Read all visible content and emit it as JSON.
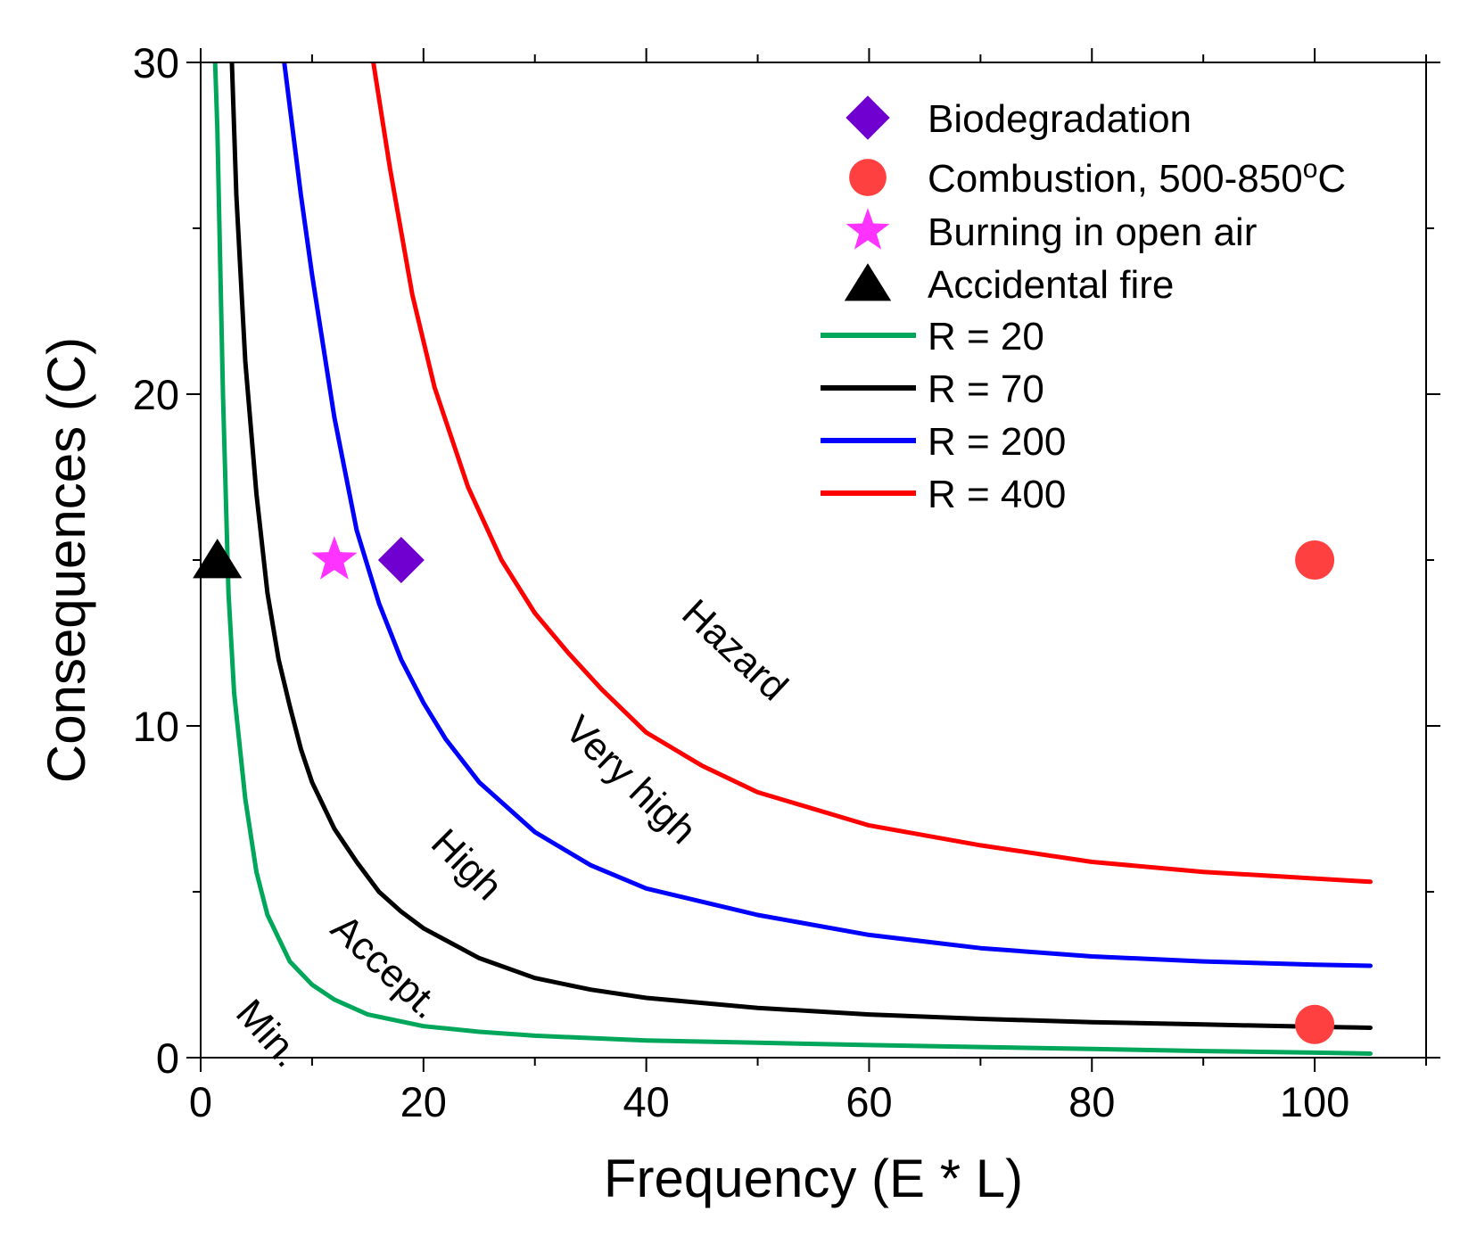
{
  "chart_data": {
    "type": "line",
    "xlabel": "Frequency (E * L)",
    "ylabel": "Consequences (C)",
    "xlim": [
      0,
      110
    ],
    "ylim": [
      0,
      30
    ],
    "x_ticks": [
      0,
      20,
      40,
      60,
      80,
      100
    ],
    "y_ticks": [
      0,
      10,
      20,
      30
    ],
    "x_minor_step": 10,
    "y_minor_step": 5,
    "series": [
      {
        "name": "R = 20",
        "color": "#00a65a",
        "values": [
          [
            1.3,
            30
          ],
          [
            1.5,
            28
          ],
          [
            2,
            20
          ],
          [
            2.5,
            14
          ],
          [
            3,
            11
          ],
          [
            4,
            7.8
          ],
          [
            5,
            5.6
          ],
          [
            6,
            4.3
          ],
          [
            8,
            2.9
          ],
          [
            10,
            2.2
          ],
          [
            12,
            1.75
          ],
          [
            15,
            1.3
          ],
          [
            20,
            0.95
          ],
          [
            25,
            0.78
          ],
          [
            30,
            0.66
          ],
          [
            40,
            0.52
          ],
          [
            50,
            0.45
          ],
          [
            60,
            0.38
          ],
          [
            70,
            0.32
          ],
          [
            80,
            0.26
          ],
          [
            90,
            0.2
          ],
          [
            100,
            0.15
          ],
          [
            105,
            0.12
          ]
        ]
      },
      {
        "name": "R = 70",
        "color": "#000000",
        "values": [
          [
            2.8,
            30
          ],
          [
            3.2,
            26
          ],
          [
            4,
            21
          ],
          [
            5,
            17
          ],
          [
            6,
            14
          ],
          [
            7,
            12
          ],
          [
            8,
            10.6
          ],
          [
            9,
            9.3
          ],
          [
            10,
            8.3
          ],
          [
            12,
            6.9
          ],
          [
            14,
            5.9
          ],
          [
            16,
            5.0
          ],
          [
            18,
            4.4
          ],
          [
            20,
            3.9
          ],
          [
            25,
            3.0
          ],
          [
            30,
            2.4
          ],
          [
            35,
            2.05
          ],
          [
            40,
            1.8
          ],
          [
            50,
            1.5
          ],
          [
            60,
            1.3
          ],
          [
            70,
            1.17
          ],
          [
            80,
            1.07
          ],
          [
            90,
            1.0
          ],
          [
            100,
            0.93
          ],
          [
            105,
            0.9
          ]
        ]
      },
      {
        "name": "R = 200",
        "color": "#0000ff",
        "values": [
          [
            7.5,
            30
          ],
          [
            9,
            26
          ],
          [
            10,
            23.6
          ],
          [
            12,
            19.3
          ],
          [
            14,
            15.9
          ],
          [
            16,
            13.7
          ],
          [
            18,
            12.0
          ],
          [
            20,
            10.7
          ],
          [
            22,
            9.6
          ],
          [
            25,
            8.3
          ],
          [
            30,
            6.8
          ],
          [
            35,
            5.8
          ],
          [
            40,
            5.1
          ],
          [
            50,
            4.3
          ],
          [
            60,
            3.7
          ],
          [
            70,
            3.3
          ],
          [
            80,
            3.05
          ],
          [
            90,
            2.9
          ],
          [
            100,
            2.8
          ],
          [
            105,
            2.77
          ]
        ]
      },
      {
        "name": "R = 400",
        "color": "#ff0000",
        "values": [
          [
            15.5,
            30
          ],
          [
            17,
            26.8
          ],
          [
            19,
            23
          ],
          [
            21,
            20.2
          ],
          [
            24,
            17.2
          ],
          [
            27,
            15.0
          ],
          [
            30,
            13.4
          ],
          [
            33,
            12.2
          ],
          [
            36,
            11.1
          ],
          [
            40,
            9.8
          ],
          [
            45,
            8.8
          ],
          [
            50,
            8.0
          ],
          [
            60,
            7.0
          ],
          [
            70,
            6.4
          ],
          [
            80,
            5.9
          ],
          [
            90,
            5.6
          ],
          [
            100,
            5.4
          ],
          [
            105,
            5.3
          ]
        ]
      }
    ],
    "points": [
      {
        "name": "Biodegradation",
        "marker": "diamond",
        "color": "#7000d0",
        "values": [
          [
            18,
            15
          ]
        ]
      },
      {
        "name": "Combustion, 500-850",
        "name_sup": "o",
        "name_suffix": "C",
        "marker": "circle",
        "color": "#ff4040",
        "values": [
          [
            100,
            15
          ],
          [
            100,
            1
          ]
        ]
      },
      {
        "name": "Burning in open air",
        "marker": "star",
        "color": "#ff33ff",
        "values": [
          [
            12,
            15
          ]
        ]
      },
      {
        "name": "Accidental fire",
        "marker": "triangle",
        "color": "#000000",
        "values": [
          [
            1.5,
            15
          ]
        ]
      }
    ],
    "region_labels": [
      {
        "text": "Min.",
        "x": 3,
        "y": 1.3,
        "angle": 48
      },
      {
        "text": "Accept.",
        "x": 11.5,
        "y": 3.8,
        "angle": 43
      },
      {
        "text": "High",
        "x": 20.5,
        "y": 6.4,
        "angle": 45
      },
      {
        "text": "Very high",
        "x": 32.5,
        "y": 9.8,
        "angle": 44
      },
      {
        "text": "Hazard",
        "x": 43,
        "y": 13.3,
        "angle": 43
      }
    ],
    "legend_position": "top-right"
  }
}
